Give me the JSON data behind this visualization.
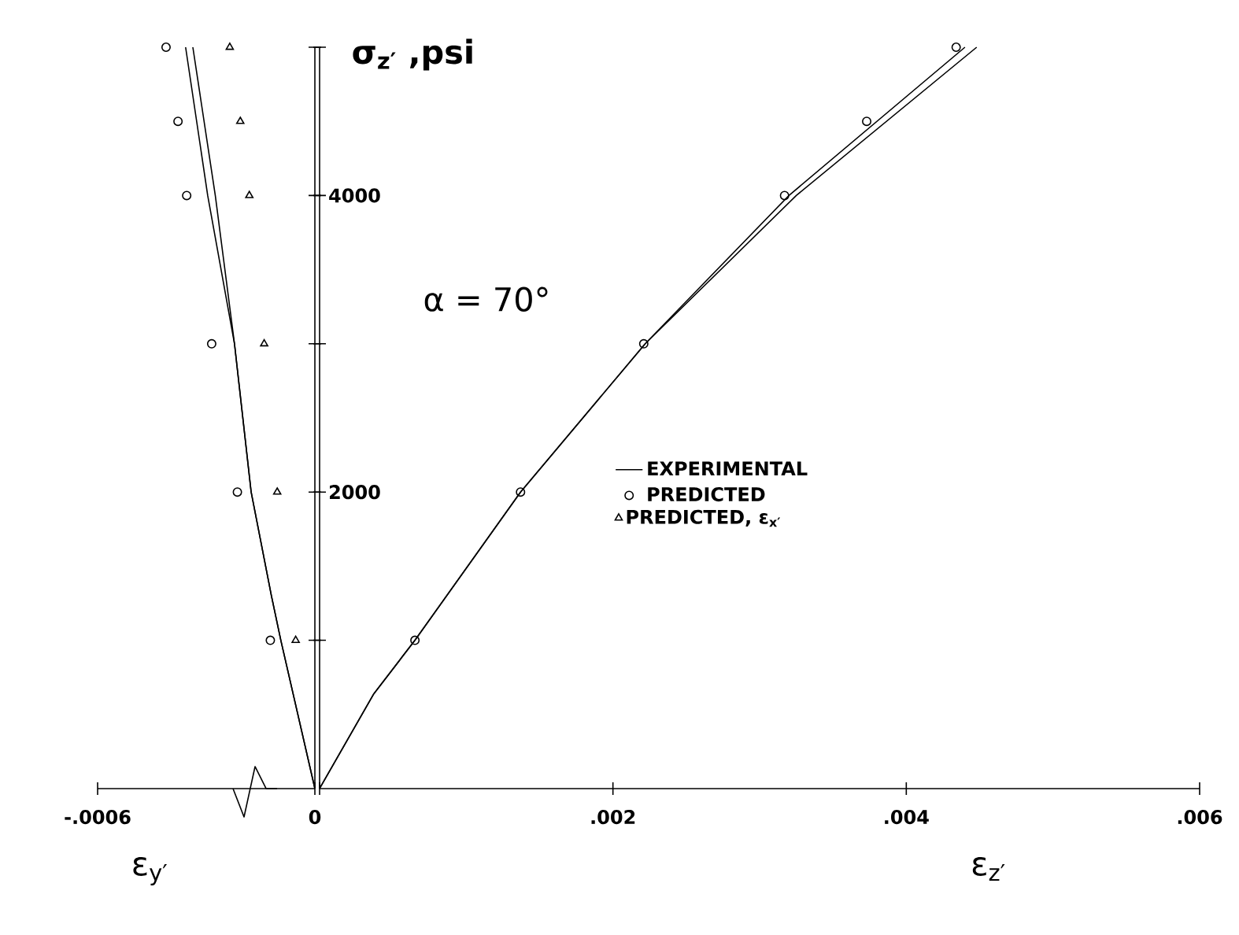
{
  "chart_data": [
    {
      "type": "line",
      "xlabel": "ε$_{y′}$",
      "xlim": [
        -0.0006,
        0
      ],
      "xticks": [
        {
          "value": -0.0006,
          "label": "-.0006"
        },
        {
          "value": 0,
          "label": "0"
        }
      ],
      "ylim": [
        0,
        5000
      ],
      "yticks": [
        1000,
        2000,
        3000,
        4000,
        5000
      ],
      "tick_labels": "x",
      "legend": "right",
      "x": [
        0,
        -9.4e-05,
        -0.00012,
        -0.000176,
        -0.000222,
        -0.000296,
        -0.000357
      ],
      "series": [
        {
          "color": "#000000",
          "marker": "none",
          "values": [
            0,
            1000,
            1300,
            2000,
            3000,
            4000,
            5000
          ]
        },
        {
          "color": "#000000",
          "marker": "none",
          "x": [
            0,
            -9.4e-05,
            -0.00012,
            -0.000176,
            -0.000222,
            -0.000275,
            -0.000337
          ],
          "values": [
            0,
            1000,
            1300,
            2000,
            3000,
            4000,
            5000
          ]
        },
        {
          "type": "scatter",
          "name": "PREDICTED, ε$_{x′}$",
          "color": "#000000",
          "marker": "triangle",
          "x": [
            -5.3e-05,
            -0.000104,
            -0.00014,
            -0.000181,
            -0.000206,
            -0.000235
          ],
          "values": [
            1000,
            2000,
            3000,
            4000,
            4500,
            5000
          ]
        },
        {
          "type": "scatter",
          "color": "#000000",
          "marker": "circle",
          "x": [
            -0.000123,
            -0.000214,
            -0.000285,
            -0.000354,
            -0.000378,
            -0.000411
          ],
          "values": [
            1000,
            2000,
            3000,
            4000,
            4500,
            5000
          ]
        }
      ]
    },
    {
      "type": "line",
      "xlabel": "ε$_{z′}$",
      "ylabel": "σ$_{z′}$ ,psi",
      "annotations": [
        "α = 70°"
      ],
      "legend": "bottom",
      "xlim": [
        0,
        0.006
      ],
      "xticks": [
        {
          "value": 0,
          "label": null
        },
        {
          "value": 0.002,
          "label": ".002"
        },
        {
          "value": 0.004,
          "label": ".004"
        },
        {
          "value": 0.006,
          "label": ".006"
        }
      ],
      "ylim": [
        0,
        5000
      ],
      "yticks": [
        {
          "value": 1000,
          "label": null
        },
        {
          "value": 2000,
          "label": "2000"
        },
        {
          "value": 3000,
          "label": null
        },
        {
          "value": 4000,
          "label": "4000"
        },
        {
          "value": 5000,
          "label": null
        }
      ],
      "x": [
        0,
        0.00037,
        0.00065,
        0.00137,
        0.00222,
        0.0032,
        0.0044
      ],
      "series": [
        {
          "name": "EXPERIMENTAL",
          "color": "#000000",
          "marker": "none",
          "values": [
            0,
            640,
            1000,
            2000,
            3000,
            4000,
            5000
          ]
        },
        {
          "color": "#000000",
          "marker": "none",
          "x": [
            0,
            0.00037,
            0.00065,
            0.00137,
            0.00222,
            0.00325,
            0.00448
          ],
          "values": [
            0,
            640,
            1000,
            2000,
            3000,
            4000,
            5000
          ]
        },
        {
          "type": "scatter",
          "name": "PREDICTED",
          "color": "#000000",
          "marker": "circle",
          "x": [
            0.00065,
            0.00137,
            0.00221,
            0.00317,
            0.00373,
            0.00434
          ],
          "values": [
            1000,
            2000,
            3000,
            4000,
            4500,
            5000
          ]
        }
      ]
    }
  ]
}
